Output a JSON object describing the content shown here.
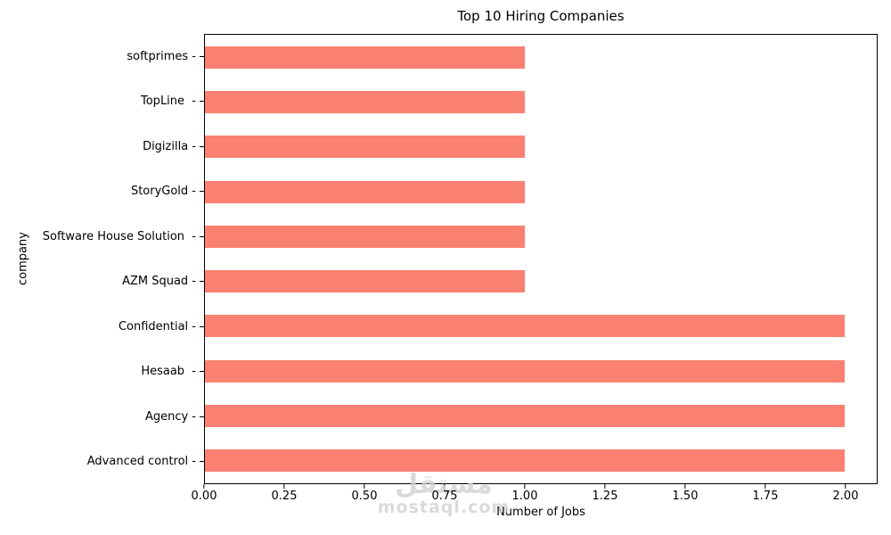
{
  "chart_data": {
    "type": "bar",
    "orientation": "horizontal",
    "title": "Top 10 Hiring Companies",
    "xlabel": "Number of Jobs",
    "ylabel": "company",
    "categories": [
      "softprimes",
      "TopLine",
      "Digizilla",
      "StoryGold",
      "Software House Solution",
      "AZM Squad",
      "Confidential",
      "Hesaab",
      "Agency",
      "Advanced control"
    ],
    "ytick_labels": [
      "softprimes -",
      "TopLine  -",
      "Digizilla -",
      "StoryGold -",
      "Software House Solution  -",
      "AZM Squad -",
      "Confidential -",
      "Hesaab  -",
      "Agency -",
      "Advanced control -"
    ],
    "values": [
      1,
      1,
      1,
      1,
      1,
      1,
      2,
      2,
      2,
      2
    ],
    "xlim": [
      0,
      2.1
    ],
    "xtick_values": [
      0,
      0.25,
      0.5,
      0.75,
      1.0,
      1.25,
      1.5,
      1.75,
      2.0
    ],
    "xtick_labels": [
      "0.00",
      "0.25",
      "0.50",
      "0.75",
      "1.00",
      "1.25",
      "1.50",
      "1.75",
      "2.00"
    ],
    "bar_color": "#fa8072",
    "grid": false,
    "legend_position": "none"
  },
  "watermark": {
    "logo_text": "مستقل",
    "domain": "mostaql.com",
    "color": "#d2d2d2"
  }
}
